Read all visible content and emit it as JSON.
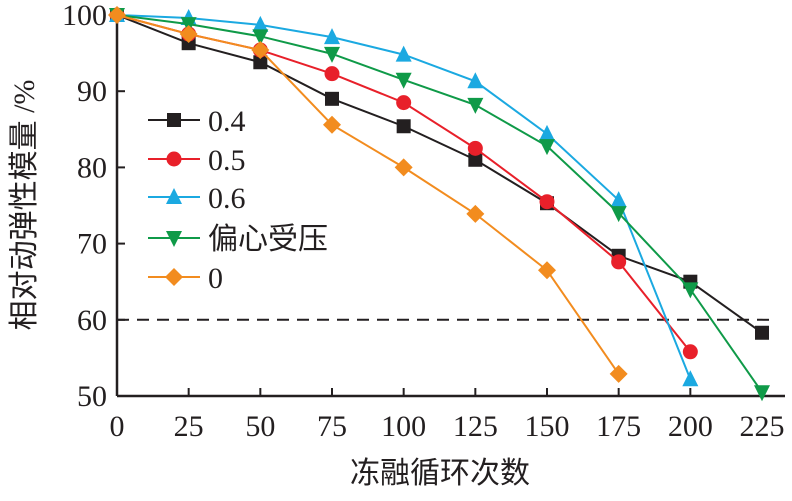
{
  "chart_data": {
    "type": "line",
    "title": "",
    "xlabel": "冻融循环次数",
    "ylabel": "相对动弹性模量 /%",
    "xlim": [
      0,
      225
    ],
    "ylim": [
      50,
      100
    ],
    "xticks": [
      0,
      25,
      50,
      75,
      100,
      125,
      150,
      175,
      200,
      225
    ],
    "yticks": [
      50,
      60,
      70,
      80,
      90,
      100
    ],
    "grid": false,
    "legend_position": "left-middle",
    "reference_line": {
      "y": 60,
      "style": "dashed"
    },
    "series": [
      {
        "name": "0.4",
        "color": "#231f20",
        "marker": "square",
        "x": [
          0,
          25,
          50,
          75,
          100,
          125,
          150,
          175,
          200,
          225
        ],
        "y": [
          100,
          96.3,
          93.8,
          89.0,
          85.4,
          81.0,
          75.3,
          68.4,
          65.0,
          58.3
        ]
      },
      {
        "name": "0.5",
        "color": "#e8202a",
        "marker": "circle",
        "x": [
          0,
          25,
          50,
          75,
          100,
          125,
          150,
          175,
          200
        ],
        "y": [
          100,
          97.5,
          95.4,
          92.3,
          88.5,
          82.5,
          75.5,
          67.6,
          55.8
        ]
      },
      {
        "name": "0.6",
        "color": "#1ba9e1",
        "marker": "triangle-up",
        "x": [
          0,
          25,
          50,
          75,
          100,
          125,
          150,
          175,
          200
        ],
        "y": [
          100,
          99.6,
          98.7,
          97.1,
          94.8,
          91.3,
          84.4,
          75.7,
          52.2
        ]
      },
      {
        "name": "偏心受压",
        "color": "#0f9a48",
        "marker": "triangle-down",
        "x": [
          0,
          25,
          50,
          75,
          100,
          125,
          150,
          175,
          200,
          225
        ],
        "y": [
          100,
          98.8,
          97.2,
          94.9,
          91.5,
          88.2,
          82.8,
          74.0,
          64.0,
          50.5
        ]
      },
      {
        "name": "0",
        "color": "#f28c1f",
        "marker": "diamond",
        "x": [
          0,
          25,
          50,
          75,
          100,
          125,
          150,
          175
        ],
        "y": [
          100,
          97.5,
          95.4,
          85.6,
          80.0,
          73.9,
          66.5,
          52.9
        ]
      }
    ]
  }
}
